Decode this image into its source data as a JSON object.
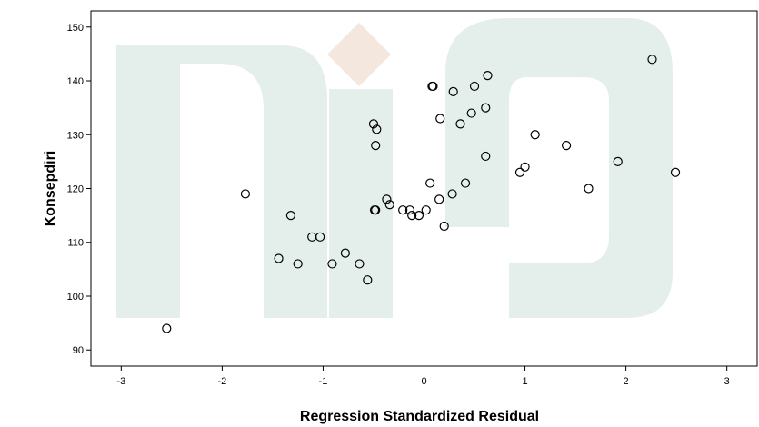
{
  "chart_data": {
    "type": "scatter",
    "xlabel": "Regression Standardized Residual",
    "ylabel": "Konsepdiri",
    "xlim": [
      -3.3,
      3.3
    ],
    "ylim": [
      87,
      153
    ],
    "x_ticks": [
      -3,
      -2,
      -1,
      0,
      1,
      2,
      3
    ],
    "y_ticks": [
      90,
      100,
      110,
      120,
      130,
      140,
      150
    ],
    "grid": false,
    "marker": "hollow-circle",
    "plot_background": "#ffffff",
    "watermark": {
      "colors": {
        "arc": "#e4eeea",
        "diamond": "#f4e7dd"
      }
    },
    "points": [
      {
        "x": -2.55,
        "y": 94
      },
      {
        "x": -1.77,
        "y": 119
      },
      {
        "x": -1.32,
        "y": 115
      },
      {
        "x": -1.44,
        "y": 107
      },
      {
        "x": -1.25,
        "y": 106
      },
      {
        "x": -1.11,
        "y": 111
      },
      {
        "x": -1.03,
        "y": 111
      },
      {
        "x": -0.91,
        "y": 106
      },
      {
        "x": -0.78,
        "y": 108
      },
      {
        "x": -0.64,
        "y": 106
      },
      {
        "x": -0.56,
        "y": 103
      },
      {
        "x": -0.5,
        "y": 132
      },
      {
        "x": -0.47,
        "y": 131
      },
      {
        "x": -0.48,
        "y": 128
      },
      {
        "x": -0.49,
        "y": 116
      },
      {
        "x": -0.48,
        "y": 116
      },
      {
        "x": -0.37,
        "y": 118
      },
      {
        "x": -0.34,
        "y": 117
      },
      {
        "x": -0.21,
        "y": 116
      },
      {
        "x": -0.14,
        "y": 116
      },
      {
        "x": -0.12,
        "y": 115
      },
      {
        "x": -0.05,
        "y": 115
      },
      {
        "x": 0.02,
        "y": 116
      },
      {
        "x": 0.06,
        "y": 121
      },
      {
        "x": 0.08,
        "y": 139
      },
      {
        "x": 0.09,
        "y": 139
      },
      {
        "x": 0.15,
        "y": 118
      },
      {
        "x": 0.16,
        "y": 133
      },
      {
        "x": 0.2,
        "y": 113
      },
      {
        "x": 0.28,
        "y": 119
      },
      {
        "x": 0.29,
        "y": 138
      },
      {
        "x": 0.36,
        "y": 132
      },
      {
        "x": 0.41,
        "y": 121
      },
      {
        "x": 0.47,
        "y": 134
      },
      {
        "x": 0.5,
        "y": 139
      },
      {
        "x": 0.61,
        "y": 135
      },
      {
        "x": 0.61,
        "y": 126
      },
      {
        "x": 0.63,
        "y": 141
      },
      {
        "x": 0.95,
        "y": 123
      },
      {
        "x": 1.0,
        "y": 124
      },
      {
        "x": 1.1,
        "y": 130
      },
      {
        "x": 1.41,
        "y": 128
      },
      {
        "x": 1.63,
        "y": 120
      },
      {
        "x": 1.92,
        "y": 125
      },
      {
        "x": 2.26,
        "y": 144
      },
      {
        "x": 2.49,
        "y": 123
      }
    ]
  }
}
